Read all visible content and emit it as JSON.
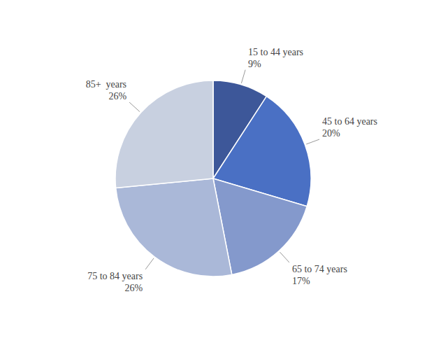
{
  "chart_data": {
    "type": "pie",
    "categories": [
      "15 to 44 years",
      "45 to 64 years",
      "65 to 74 years",
      "75 to 84 years",
      "85+  years"
    ],
    "values": [
      9,
      20,
      17,
      26,
      26
    ],
    "value_labels": [
      "9%",
      "20%",
      "17%",
      "26%",
      "26%"
    ],
    "colors": [
      "#3d5799",
      "#4a70c4",
      "#8499cc",
      "#aab8d8",
      "#c8d0e0"
    ]
  }
}
